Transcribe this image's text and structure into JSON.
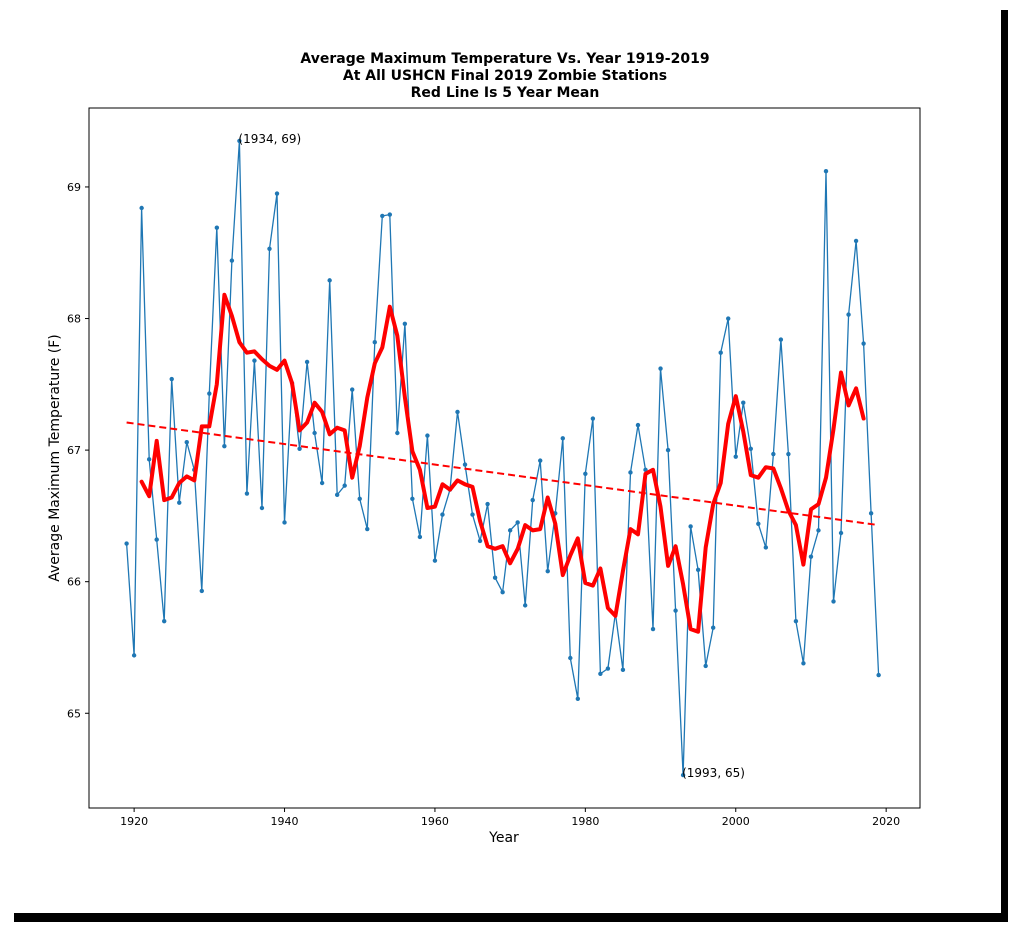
{
  "chart_data": {
    "type": "line",
    "title_lines": [
      "Average Maximum Temperature Vs. Year 1919-2019",
      "At All USHCN Final 2019 Zombie Stations",
      "Red Line Is 5 Year Mean"
    ],
    "xlabel": "Year",
    "ylabel": "Average Maximum Temperature (F)",
    "xlim": [
      1914,
      2024.5
    ],
    "ylim": [
      64.28,
      69.6
    ],
    "xticks": [
      1920,
      1940,
      1960,
      1980,
      2000,
      2020
    ],
    "yticks": [
      65,
      66,
      67,
      68,
      69
    ],
    "grid": false,
    "series": [
      {
        "role": "annual",
        "color": "#1f77b4",
        "x": [
          1919,
          1920,
          1921,
          1922,
          1923,
          1924,
          1925,
          1926,
          1927,
          1928,
          1929,
          1930,
          1931,
          1932,
          1933,
          1934,
          1935,
          1936,
          1937,
          1938,
          1939,
          1940,
          1941,
          1942,
          1943,
          1944,
          1945,
          1946,
          1947,
          1948,
          1949,
          1950,
          1951,
          1952,
          1953,
          1954,
          1955,
          1956,
          1957,
          1958,
          1959,
          1960,
          1961,
          1962,
          1963,
          1964,
          1965,
          1966,
          1967,
          1968,
          1969,
          1970,
          1971,
          1972,
          1973,
          1974,
          1975,
          1976,
          1977,
          1978,
          1979,
          1980,
          1981,
          1982,
          1983,
          1984,
          1985,
          1986,
          1987,
          1988,
          1989,
          1990,
          1991,
          1992,
          1993,
          1994,
          1995,
          1996,
          1997,
          1998,
          1999,
          2000,
          2001,
          2002,
          2003,
          2004,
          2005,
          2006,
          2007,
          2008,
          2009,
          2010,
          2011,
          2012,
          2013,
          2014,
          2015,
          2016,
          2017,
          2018,
          2019
        ],
        "y": [
          66.29,
          65.44,
          68.84,
          66.93,
          66.32,
          65.7,
          67.54,
          66.6,
          67.06,
          66.85,
          65.93,
          67.43,
          68.69,
          67.03,
          68.44,
          69.35,
          66.67,
          67.68,
          66.56,
          68.53,
          68.95,
          66.45,
          67.51,
          67.01,
          67.67,
          67.13,
          66.75,
          68.29,
          66.66,
          66.73,
          67.46,
          66.63,
          66.4,
          67.82,
          68.78,
          68.79,
          67.13,
          67.96,
          66.63,
          66.34,
          67.11,
          66.16,
          66.51,
          66.7,
          67.29,
          66.89,
          66.51,
          66.31,
          66.59,
          66.03,
          65.92,
          66.39,
          66.45,
          65.82,
          66.62,
          66.92,
          66.08,
          66.52,
          67.09,
          65.42,
          65.11,
          66.82,
          67.24,
          65.3,
          65.34,
          65.76,
          65.33,
          66.83,
          67.19,
          66.85,
          65.64,
          67.62,
          67.0,
          65.78,
          64.53,
          66.42,
          66.09,
          65.36,
          65.65,
          67.74,
          68.0,
          66.95,
          67.36,
          67.01,
          66.44,
          66.26,
          66.97,
          67.84,
          66.97,
          65.7,
          65.38,
          66.19,
          66.39,
          69.12,
          65.85,
          66.37,
          68.03,
          68.59,
          67.81,
          66.52,
          65.29
        ]
      },
      {
        "role": "5-year mean",
        "color": "#ff0000",
        "x": [
          1921,
          1922,
          1923,
          1924,
          1925,
          1926,
          1927,
          1928,
          1929,
          1930,
          1931,
          1932,
          1933,
          1934,
          1935,
          1936,
          1937,
          1938,
          1939,
          1940,
          1941,
          1942,
          1943,
          1944,
          1945,
          1946,
          1947,
          1948,
          1949,
          1950,
          1951,
          1952,
          1953,
          1954,
          1955,
          1956,
          1957,
          1958,
          1959,
          1960,
          1961,
          1962,
          1963,
          1964,
          1965,
          1966,
          1967,
          1968,
          1969,
          1970,
          1971,
          1972,
          1973,
          1974,
          1975,
          1976,
          1977,
          1978,
          1979,
          1980,
          1981,
          1982,
          1983,
          1984,
          1985,
          1986,
          1987,
          1988,
          1989,
          1990,
          1991,
          1992,
          1993,
          1994,
          1995,
          1996,
          1997,
          1998,
          1999,
          2000,
          2001,
          2002,
          2003,
          2004,
          2005,
          2006,
          2007,
          2008,
          2009,
          2010,
          2011,
          2012,
          2013,
          2014,
          2015,
          2016,
          2017
        ],
        "y": [
          66.76,
          66.65,
          67.07,
          66.62,
          66.64,
          66.75,
          66.8,
          66.77,
          67.18,
          67.18,
          67.5,
          68.18,
          68.02,
          67.82,
          67.74,
          67.75,
          67.69,
          67.64,
          67.61,
          67.68,
          67.51,
          67.15,
          67.21,
          67.36,
          67.29,
          67.12,
          67.17,
          67.15,
          66.79,
          67.03,
          67.4,
          67.66,
          67.78,
          68.09,
          67.87,
          67.4,
          66.99,
          66.85,
          66.56,
          66.57,
          66.74,
          66.7,
          66.77,
          66.74,
          66.72,
          66.46,
          66.27,
          66.25,
          66.27,
          66.14,
          66.25,
          66.43,
          66.39,
          66.4,
          66.64,
          66.44,
          66.05,
          66.2,
          66.33,
          65.99,
          65.97,
          66.1,
          65.8,
          65.74,
          66.08,
          66.4,
          66.36,
          66.82,
          66.85,
          66.57,
          66.12,
          66.27,
          65.98,
          65.64,
          65.62,
          66.26,
          66.59,
          66.75,
          67.2,
          67.41,
          67.14,
          66.81,
          66.79,
          66.87,
          66.86,
          66.71,
          66.54,
          66.43,
          66.13,
          66.55,
          66.59,
          66.79,
          67.16,
          67.59,
          67.34,
          67.47,
          67.24
        ]
      },
      {
        "role": "linear trend",
        "color": "#ff0000",
        "style": "dashed",
        "x": [
          1919,
          2019
        ],
        "y": [
          67.21,
          66.43
        ]
      }
    ],
    "annotations": [
      {
        "text": "(1934, 69)",
        "x": 1934,
        "y": 69.35
      },
      {
        "text": "(1993, 65)",
        "x": 1993,
        "y": 64.53
      }
    ]
  }
}
